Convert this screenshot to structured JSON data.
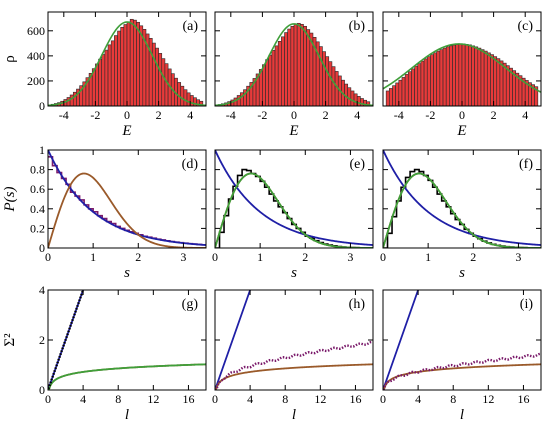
{
  "colors": {
    "bar_fill": "#e83a3a",
    "bar_edge": "#2a2a2a",
    "green": "#3f9f3a",
    "blue": "#1f1fa6",
    "brown": "#9a5a2a",
    "black": "#000000",
    "purple": "#7a1a6a"
  },
  "chart_data": [
    {
      "id": "a",
      "type": "bar",
      "panel_label": "(a)",
      "xlabel": "E",
      "ylabel": "ρ",
      "xlim": [
        -5,
        5
      ],
      "ylim": [
        0,
        750
      ],
      "xticks": [
        -4,
        -2,
        0,
        2,
        4
      ],
      "yticks": [
        0,
        200,
        400,
        600
      ],
      "hist": {
        "xstart": -4.8,
        "bin_width": 0.2,
        "values": [
          14,
          20,
          27,
          38,
          52,
          68,
          88,
          110,
          135,
          162,
          193,
          226,
          261,
          298,
          336,
          374,
          411,
          446,
          488,
          520,
          562,
          598,
          628,
          650,
          672,
          692,
          685,
          668,
          640,
          612,
          575,
          540,
          502,
          462,
          420,
          378,
          338,
          296,
          258,
          222,
          188,
          158,
          130,
          105,
          84,
          66,
          50,
          38
        ]
      },
      "curve": {
        "type": "gaussian",
        "mu": 0,
        "sigma": 1.59,
        "amp": 670,
        "color": "green"
      }
    },
    {
      "id": "b",
      "type": "bar",
      "panel_label": "(b)",
      "xlabel": "E",
      "ylabel": "",
      "xlim": [
        -5,
        5
      ],
      "ylim": [
        0,
        750
      ],
      "xticks": [
        -4,
        -2,
        0,
        2,
        4
      ],
      "yticks": [
        0,
        200,
        400,
        600
      ],
      "hist": {
        "xstart": -4.8,
        "bin_width": 0.2,
        "values": [
          12,
          18,
          25,
          35,
          48,
          64,
          84,
          106,
          130,
          158,
          188,
          220,
          256,
          292,
          330,
          370,
          406,
          444,
          480,
          516,
          552,
          586,
          614,
          636,
          652,
          660,
          652,
          636,
          610,
          582,
          548,
          512,
          474,
          434,
          394,
          354,
          314,
          276,
          240,
          206,
          175,
          146,
          120,
          97,
          77,
          60,
          46,
          34
        ]
      },
      "curve": {
        "type": "gaussian",
        "mu": 0,
        "sigma": 1.59,
        "amp": 655,
        "color": "green"
      }
    },
    {
      "id": "c",
      "type": "bar",
      "panel_label": "(c)",
      "xlabel": "E",
      "ylabel": "",
      "xlim": [
        -5,
        5
      ],
      "ylim": [
        0,
        750
      ],
      "xticks": [
        -4,
        -2,
        0,
        2,
        4
      ],
      "yticks": [
        0,
        200,
        400,
        600
      ],
      "hist": {
        "xstart": -4.8,
        "bin_width": 0.2,
        "values": [
          120,
          140,
          162,
          184,
          206,
          228,
          252,
          274,
          296,
          318,
          338,
          358,
          376,
          394,
          410,
          424,
          438,
          450,
          462,
          472,
          480,
          486,
          490,
          494,
          496,
          492,
          488,
          480,
          472,
          462,
          450,
          438,
          424,
          410,
          394,
          378,
          360,
          342,
          322,
          302,
          282,
          262,
          242,
          222,
          204,
          186,
          170,
          154
        ]
      },
      "curve": {
        "type": "gaussian",
        "mu": -0.2,
        "sigma": 3.0,
        "amp": 495,
        "color": "green"
      }
    },
    {
      "id": "d",
      "type": "line",
      "panel_label": "(d)",
      "xlabel": "s",
      "ylabel": "P(s)",
      "xlim": [
        0,
        3.5
      ],
      "ylim": [
        0,
        1.0
      ],
      "xticks": [
        0,
        1,
        2,
        3
      ],
      "yticks": [
        0,
        0.2,
        0.4,
        0.6,
        0.8,
        1
      ],
      "step": {
        "xstart": 0,
        "bin_width": 0.1,
        "color": "purple",
        "values": [
          0.93,
          0.84,
          0.77,
          0.71,
          0.65,
          0.57,
          0.53,
          0.49,
          0.44,
          0.4,
          0.37,
          0.33,
          0.3,
          0.27,
          0.25,
          0.22,
          0.2,
          0.18,
          0.165,
          0.15,
          0.135,
          0.12,
          0.11,
          0.1,
          0.09,
          0.082,
          0.074,
          0.066,
          0.06,
          0.054,
          0.049,
          0.044,
          0.04,
          0.036,
          0.032
        ]
      },
      "curves": [
        {
          "type": "poisson",
          "color": "blue"
        },
        {
          "type": "wigner",
          "color": "brown"
        }
      ]
    },
    {
      "id": "e",
      "type": "line",
      "panel_label": "(e)",
      "xlabel": "s",
      "ylabel": "",
      "xlim": [
        0,
        3.5
      ],
      "ylim": [
        0,
        1.0
      ],
      "xticks": [
        0,
        1,
        2,
        3
      ],
      "yticks": [
        0,
        0.2,
        0.4,
        0.6,
        0.8,
        1
      ],
      "step": {
        "xstart": 0,
        "bin_width": 0.1,
        "color": "black",
        "values": [
          0.0,
          0.16,
          0.33,
          0.5,
          0.63,
          0.74,
          0.8,
          0.79,
          0.76,
          0.73,
          0.68,
          0.62,
          0.55,
          0.48,
          0.42,
          0.36,
          0.3,
          0.24,
          0.2,
          0.16,
          0.12,
          0.1,
          0.075,
          0.055,
          0.04,
          0.03,
          0.022,
          0.015,
          0.01,
          0.007,
          0.005,
          0.003,
          0.002,
          0.001,
          0.0
        ]
      },
      "curves": [
        {
          "type": "poisson",
          "color": "blue"
        },
        {
          "type": "wigner",
          "color": "brown"
        },
        {
          "type": "wigner",
          "color": "green"
        }
      ]
    },
    {
      "id": "f",
      "type": "line",
      "panel_label": "(f)",
      "xlabel": "s",
      "ylabel": "",
      "xlim": [
        0,
        3.5
      ],
      "ylim": [
        0,
        1.0
      ],
      "xticks": [
        0,
        1,
        2,
        3
      ],
      "yticks": [
        0,
        0.2,
        0.4,
        0.6,
        0.8,
        1
      ],
      "step": {
        "xstart": 0,
        "bin_width": 0.1,
        "color": "black",
        "values": [
          0.0,
          0.15,
          0.32,
          0.48,
          0.62,
          0.72,
          0.78,
          0.8,
          0.78,
          0.74,
          0.69,
          0.62,
          0.55,
          0.48,
          0.42,
          0.35,
          0.29,
          0.24,
          0.19,
          0.15,
          0.12,
          0.095,
          0.07,
          0.052,
          0.038,
          0.028,
          0.02,
          0.014,
          0.01,
          0.007,
          0.005,
          0.003,
          0.002,
          0.001,
          0.0
        ]
      },
      "curves": [
        {
          "type": "poisson",
          "color": "blue"
        },
        {
          "type": "wigner",
          "color": "brown"
        },
        {
          "type": "wigner",
          "color": "green"
        }
      ]
    },
    {
      "id": "g",
      "type": "line",
      "panel_label": "(g)",
      "xlabel": "l",
      "ylabel": "Σ²",
      "xlim": [
        0,
        18
      ],
      "ylim": [
        0,
        4
      ],
      "xticks": [
        0,
        4,
        8,
        12,
        16
      ],
      "yticks": [
        0,
        2,
        4
      ],
      "data": {
        "color": "black",
        "style": "dotted",
        "model": "linear",
        "slope": 1.0,
        "xmax": 4.1
      },
      "curves": [
        {
          "type": "linear",
          "slope": 1.0,
          "color": "blue"
        },
        {
          "type": "goe",
          "color": "brown"
        },
        {
          "type": "goe",
          "color": "green"
        }
      ]
    },
    {
      "id": "h",
      "type": "line",
      "panel_label": "(h)",
      "xlabel": "l",
      "ylabel": "",
      "xlim": [
        0,
        18
      ],
      "ylim": [
        0,
        4
      ],
      "xticks": [
        0,
        4,
        8,
        12,
        16
      ],
      "yticks": [
        0,
        2,
        4
      ],
      "data": {
        "color": "purple",
        "style": "dotted",
        "model": "log",
        "a": 0.26,
        "b": 0.43,
        "offset": 0.04,
        "xmax": 18
      },
      "curves": [
        {
          "type": "linear",
          "slope": 1.0,
          "color": "blue"
        },
        {
          "type": "goe",
          "color": "brown"
        }
      ]
    },
    {
      "id": "i",
      "type": "line",
      "panel_label": "(i)",
      "xlabel": "l",
      "ylabel": "",
      "xlim": [
        0,
        18
      ],
      "ylim": [
        0,
        4
      ],
      "xticks": [
        0,
        4,
        8,
        12,
        16
      ],
      "yticks": [
        0,
        2,
        4
      ],
      "data": {
        "color": "purple",
        "style": "dotted",
        "model": "log",
        "a": 0.17,
        "b": 0.38,
        "offset": 0.03,
        "xmax": 18
      },
      "curves": [
        {
          "type": "linear",
          "slope": 1.0,
          "color": "blue"
        },
        {
          "type": "goe",
          "color": "brown"
        }
      ]
    }
  ]
}
